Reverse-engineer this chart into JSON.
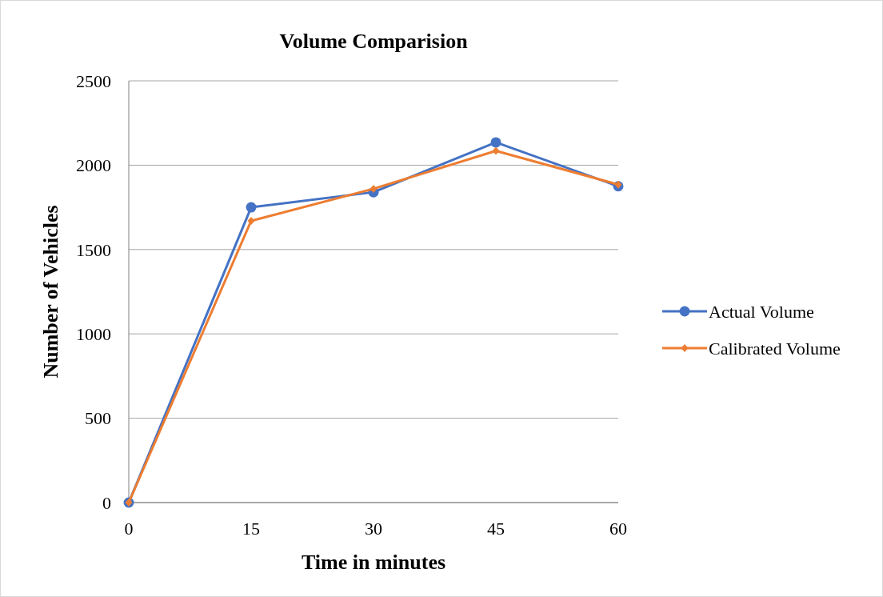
{
  "chart_data": {
    "type": "line",
    "title": "Volume Comparision",
    "xlabel": "Time in minutes",
    "ylabel": "Number of Vehicles",
    "x": [
      0,
      15,
      30,
      45,
      60
    ],
    "xlim": [
      0,
      60
    ],
    "xticks": [
      0,
      15,
      30,
      45,
      60
    ],
    "ylim": [
      0,
      2500
    ],
    "yticks": [
      0,
      500,
      1000,
      1500,
      2000,
      2500
    ],
    "grid": "y",
    "legend": "right",
    "line_style": "solid",
    "series": [
      {
        "name": "Actual Volume",
        "color": "#4472c4",
        "marker": "circle",
        "values": [
          0,
          1750,
          1840,
          2135,
          1875
        ]
      },
      {
        "name": "Calibrated Volume",
        "color": "#ed7d31",
        "marker": "diamond",
        "values": [
          0,
          1670,
          1860,
          2085,
          1885
        ]
      }
    ]
  }
}
